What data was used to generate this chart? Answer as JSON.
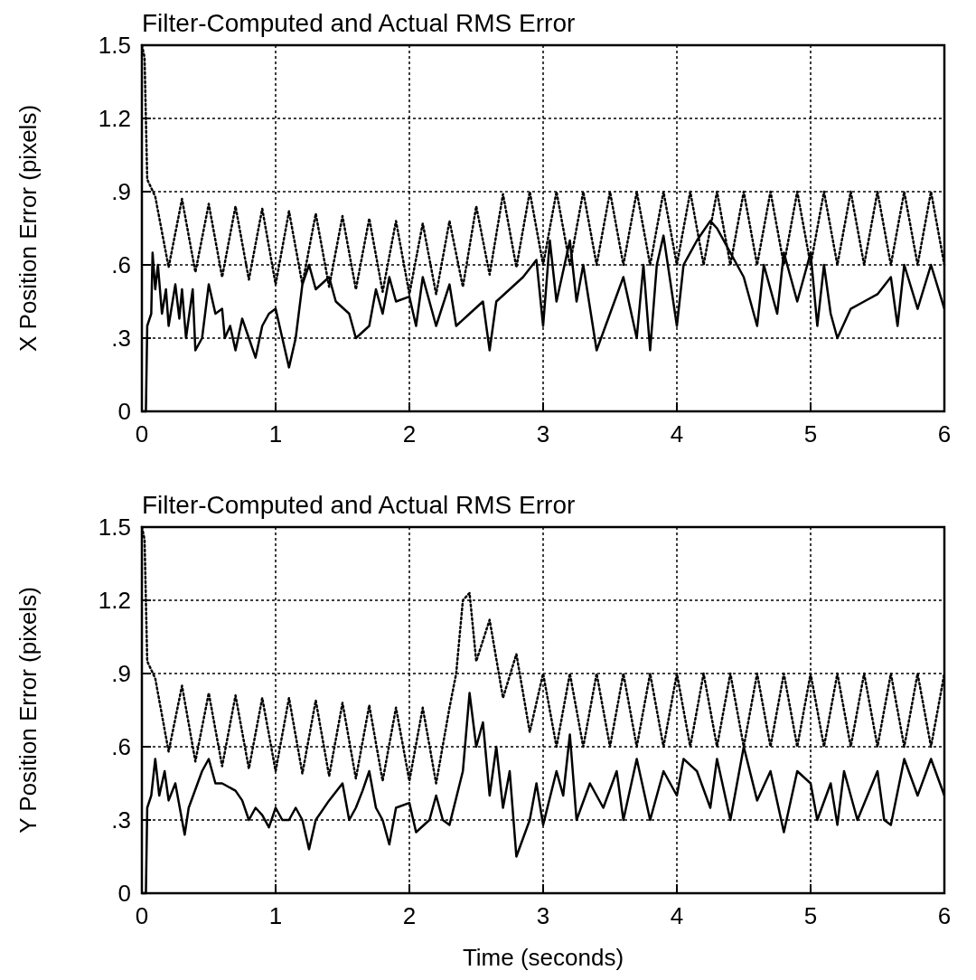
{
  "chart_data": [
    {
      "type": "line",
      "title": "Filter-Computed and Actual RMS Error",
      "ylabel": "X Position Error (pixels)",
      "xlim": [
        0,
        6
      ],
      "xticks": [
        0,
        1,
        2,
        3,
        4,
        5,
        6
      ],
      "ylim": [
        0,
        1.5
      ],
      "yticks": [
        0,
        {
          "value": 0.3,
          "label": ".3"
        },
        {
          "value": 0.6,
          "label": ".6"
        },
        {
          "value": 0.9,
          "label": ".9"
        },
        1.2,
        1.5
      ],
      "grid": true,
      "marker": "none",
      "series": [
        {
          "color": "#000000",
          "line_style": "dotted",
          "x": [
            0,
            0.02,
            0.04,
            0.1,
            0.2,
            0.3,
            0.4,
            0.5,
            0.6,
            0.7,
            0.8,
            0.9,
            1.0,
            1.1,
            1.2,
            1.3,
            1.4,
            1.5,
            1.6,
            1.7,
            1.8,
            1.9,
            2.0,
            2.1,
            2.2,
            2.3,
            2.4,
            2.5,
            2.6,
            2.7,
            2.8,
            2.9,
            3.0,
            3.1,
            3.2,
            3.3,
            3.4,
            3.5,
            3.6,
            3.7,
            3.8,
            3.9,
            4.0,
            4.1,
            4.2,
            4.3,
            4.4,
            4.5,
            4.6,
            4.7,
            4.8,
            4.9,
            5.0,
            5.1,
            5.2,
            5.3,
            5.4,
            5.5,
            5.6,
            5.7,
            5.8,
            5.9,
            6.0
          ],
          "values": [
            1.5,
            1.45,
            0.95,
            0.88,
            0.59,
            0.87,
            0.57,
            0.85,
            0.55,
            0.84,
            0.54,
            0.83,
            0.52,
            0.82,
            0.52,
            0.81,
            0.51,
            0.8,
            0.5,
            0.79,
            0.49,
            0.78,
            0.48,
            0.77,
            0.48,
            0.78,
            0.51,
            0.84,
            0.56,
            0.89,
            0.59,
            0.9,
            0.6,
            0.9,
            0.6,
            0.9,
            0.6,
            0.9,
            0.6,
            0.9,
            0.6,
            0.9,
            0.6,
            0.9,
            0.6,
            0.9,
            0.6,
            0.9,
            0.6,
            0.9,
            0.6,
            0.9,
            0.6,
            0.9,
            0.6,
            0.9,
            0.6,
            0.9,
            0.6,
            0.9,
            0.6,
            0.9,
            0.6
          ]
        },
        {
          "color": "#000000",
          "line_style": "solid",
          "x": [
            0,
            0.03,
            0.04,
            0.07,
            0.08,
            0.1,
            0.12,
            0.15,
            0.18,
            0.2,
            0.25,
            0.28,
            0.3,
            0.33,
            0.38,
            0.4,
            0.45,
            0.5,
            0.55,
            0.6,
            0.62,
            0.66,
            0.7,
            0.75,
            0.8,
            0.85,
            0.9,
            0.95,
            1.0,
            1.05,
            1.1,
            1.15,
            1.2,
            1.25,
            1.3,
            1.4,
            1.45,
            1.55,
            1.6,
            1.7,
            1.75,
            1.8,
            1.85,
            1.9,
            2.0,
            2.05,
            2.1,
            2.15,
            2.2,
            2.3,
            2.35,
            2.45,
            2.55,
            2.6,
            2.65,
            2.75,
            2.85,
            2.95,
            3.0,
            3.05,
            3.1,
            3.2,
            3.25,
            3.3,
            3.4,
            3.5,
            3.6,
            3.7,
            3.75,
            3.8,
            3.85,
            3.9,
            4.0,
            4.05,
            4.15,
            4.25,
            4.3,
            4.4,
            4.5,
            4.6,
            4.65,
            4.75,
            4.8,
            4.9,
            5.0,
            5.05,
            5.1,
            5.15,
            5.2,
            5.3,
            5.4,
            5.5,
            5.6,
            5.65,
            5.7,
            5.8,
            5.9,
            6.0
          ],
          "values": [
            0,
            0,
            0.35,
            0.4,
            0.65,
            0.5,
            0.6,
            0.4,
            0.5,
            0.35,
            0.52,
            0.38,
            0.5,
            0.3,
            0.5,
            0.25,
            0.3,
            0.52,
            0.4,
            0.42,
            0.3,
            0.35,
            0.25,
            0.38,
            0.3,
            0.22,
            0.35,
            0.4,
            0.42,
            0.3,
            0.18,
            0.3,
            0.52,
            0.6,
            0.5,
            0.55,
            0.45,
            0.4,
            0.3,
            0.35,
            0.5,
            0.4,
            0.55,
            0.45,
            0.47,
            0.35,
            0.55,
            0.45,
            0.35,
            0.52,
            0.35,
            0.4,
            0.45,
            0.25,
            0.45,
            0.5,
            0.55,
            0.62,
            0.35,
            0.7,
            0.45,
            0.7,
            0.45,
            0.6,
            0.25,
            0.4,
            0.55,
            0.3,
            0.6,
            0.25,
            0.6,
            0.72,
            0.35,
            0.6,
            0.7,
            0.78,
            0.75,
            0.65,
            0.55,
            0.35,
            0.6,
            0.4,
            0.65,
            0.45,
            0.65,
            0.35,
            0.6,
            0.4,
            0.3,
            0.42,
            0.45,
            0.48,
            0.55,
            0.35,
            0.6,
            0.42,
            0.6,
            0.42
          ]
        }
      ]
    },
    {
      "type": "line",
      "title": "Filter-Computed and Actual RMS Error",
      "xlabel": "Time (seconds)",
      "ylabel": "Y Position Error (pixels)",
      "xlim": [
        0,
        6
      ],
      "xticks": [
        0,
        1,
        2,
        3,
        4,
        5,
        6
      ],
      "ylim": [
        0,
        1.5
      ],
      "yticks": [
        0,
        {
          "value": 0.3,
          "label": ".3"
        },
        {
          "value": 0.6,
          "label": ".6"
        },
        {
          "value": 0.9,
          "label": ".9"
        },
        1.2,
        1.5
      ],
      "grid": true,
      "marker": "none",
      "series": [
        {
          "color": "#000000",
          "line_style": "dotted",
          "x": [
            0,
            0.02,
            0.04,
            0.1,
            0.2,
            0.3,
            0.4,
            0.5,
            0.6,
            0.7,
            0.8,
            0.9,
            1.0,
            1.1,
            1.2,
            1.3,
            1.4,
            1.5,
            1.6,
            1.7,
            1.8,
            1.9,
            2.0,
            2.1,
            2.2,
            2.3,
            2.35,
            2.4,
            2.45,
            2.5,
            2.6,
            2.7,
            2.8,
            2.9,
            3.0,
            3.1,
            3.2,
            3.3,
            3.4,
            3.5,
            3.6,
            3.7,
            3.8,
            3.9,
            4.0,
            4.1,
            4.2,
            4.3,
            4.4,
            4.5,
            4.6,
            4.7,
            4.8,
            4.9,
            5.0,
            5.1,
            5.2,
            5.3,
            5.4,
            5.5,
            5.6,
            5.7,
            5.8,
            5.9,
            6.0
          ],
          "values": [
            1.5,
            1.45,
            0.95,
            0.88,
            0.58,
            0.85,
            0.54,
            0.82,
            0.52,
            0.81,
            0.51,
            0.8,
            0.5,
            0.8,
            0.49,
            0.79,
            0.48,
            0.78,
            0.47,
            0.77,
            0.46,
            0.76,
            0.46,
            0.76,
            0.45,
            0.76,
            0.9,
            1.2,
            1.23,
            0.95,
            1.12,
            0.8,
            0.98,
            0.66,
            0.9,
            0.6,
            0.9,
            0.6,
            0.9,
            0.6,
            0.9,
            0.6,
            0.9,
            0.6,
            0.9,
            0.6,
            0.9,
            0.6,
            0.9,
            0.6,
            0.9,
            0.6,
            0.9,
            0.6,
            0.9,
            0.6,
            0.9,
            0.6,
            0.9,
            0.6,
            0.9,
            0.6,
            0.9,
            0.6,
            0.9
          ]
        },
        {
          "color": "#000000",
          "line_style": "solid",
          "x": [
            0,
            0.03,
            0.04,
            0.07,
            0.1,
            0.13,
            0.17,
            0.2,
            0.25,
            0.3,
            0.32,
            0.35,
            0.45,
            0.5,
            0.55,
            0.6,
            0.7,
            0.75,
            0.8,
            0.85,
            0.9,
            0.95,
            1.0,
            1.05,
            1.1,
            1.15,
            1.2,
            1.25,
            1.3,
            1.4,
            1.5,
            1.55,
            1.6,
            1.65,
            1.7,
            1.75,
            1.8,
            1.85,
            1.9,
            2.0,
            2.05,
            2.15,
            2.2,
            2.25,
            2.3,
            2.4,
            2.45,
            2.5,
            2.55,
            2.6,
            2.65,
            2.7,
            2.75,
            2.8,
            2.9,
            2.95,
            3.0,
            3.1,
            3.15,
            3.2,
            3.25,
            3.35,
            3.45,
            3.55,
            3.6,
            3.7,
            3.8,
            3.9,
            4.0,
            4.05,
            4.15,
            4.25,
            4.3,
            4.4,
            4.5,
            4.6,
            4.7,
            4.8,
            4.9,
            5.0,
            5.05,
            5.15,
            5.2,
            5.25,
            5.35,
            5.5,
            5.55,
            5.6,
            5.7,
            5.8,
            5.9,
            6.0
          ],
          "values": [
            0,
            0,
            0.35,
            0.4,
            0.55,
            0.4,
            0.5,
            0.38,
            0.45,
            0.3,
            0.24,
            0.35,
            0.5,
            0.55,
            0.45,
            0.45,
            0.42,
            0.38,
            0.3,
            0.35,
            0.32,
            0.27,
            0.35,
            0.3,
            0.3,
            0.35,
            0.3,
            0.18,
            0.3,
            0.38,
            0.45,
            0.3,
            0.35,
            0.42,
            0.5,
            0.35,
            0.3,
            0.2,
            0.35,
            0.37,
            0.25,
            0.3,
            0.4,
            0.3,
            0.28,
            0.5,
            0.82,
            0.6,
            0.7,
            0.4,
            0.6,
            0.35,
            0.5,
            0.15,
            0.3,
            0.45,
            0.28,
            0.5,
            0.4,
            0.65,
            0.3,
            0.45,
            0.35,
            0.5,
            0.3,
            0.55,
            0.3,
            0.5,
            0.4,
            0.55,
            0.5,
            0.35,
            0.55,
            0.3,
            0.6,
            0.38,
            0.5,
            0.25,
            0.5,
            0.45,
            0.3,
            0.45,
            0.28,
            0.5,
            0.3,
            0.5,
            0.3,
            0.28,
            0.55,
            0.4,
            0.55,
            0.4
          ]
        }
      ]
    }
  ]
}
